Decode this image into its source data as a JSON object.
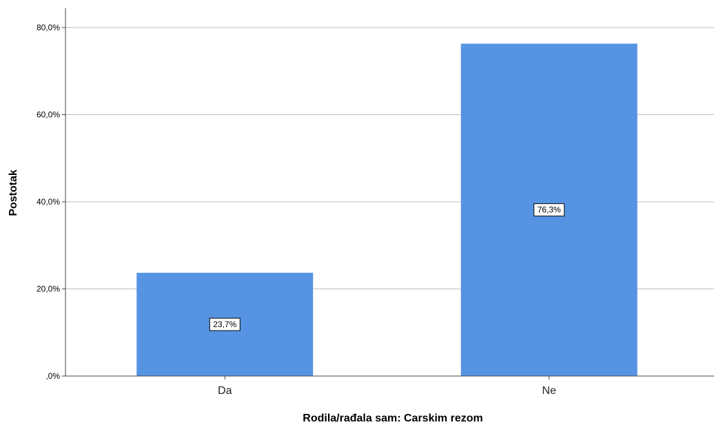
{
  "chart_data": {
    "type": "bar",
    "categories": [
      "Da",
      "Ne"
    ],
    "values": [
      23.7,
      76.3
    ],
    "data_labels": [
      "23,7%",
      "76,3%"
    ],
    "xlabel": "Rodila/rađala sam: Carskim rezom",
    "ylabel": "Postotak",
    "ylim": [
      0,
      80
    ],
    "yticks": [
      0,
      20,
      40,
      60,
      80
    ],
    "ytick_labels": [
      ",0%",
      "20,0%",
      "40,0%",
      "60,0%",
      "80,0%"
    ],
    "grid": true,
    "bar_color": "#5694e3"
  }
}
